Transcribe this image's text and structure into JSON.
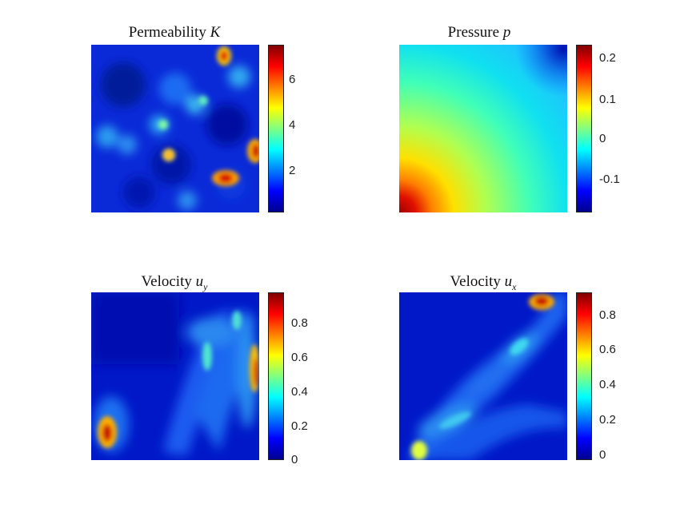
{
  "chart_data": [
    {
      "type": "heatmap",
      "title": "Permeability",
      "title_symbol": "K",
      "colormap": "jet",
      "colorbar": {
        "ticks": [
          2,
          4,
          6
        ],
        "range": [
          0.2,
          7.5
        ]
      }
    },
    {
      "type": "heatmap",
      "title": "Pressure",
      "title_symbol": "p",
      "colormap": "jet",
      "colorbar": {
        "ticks": [
          -0.1,
          0,
          0.1,
          0.2
        ],
        "range": [
          -0.18,
          0.23
        ]
      }
    },
    {
      "type": "heatmap",
      "title": "Velocity",
      "title_symbol": "u_y",
      "colormap": "jet",
      "colorbar": {
        "ticks": [
          0,
          0.2,
          0.4,
          0.6,
          0.8
        ],
        "range": [
          0,
          0.97
        ]
      }
    },
    {
      "type": "heatmap",
      "title": "Velocity",
      "title_symbol": "u_x",
      "colormap": "jet",
      "colorbar": {
        "ticks": [
          0,
          0.2,
          0.4,
          0.6,
          0.8
        ],
        "range": [
          -0.03,
          0.93
        ]
      }
    }
  ]
}
